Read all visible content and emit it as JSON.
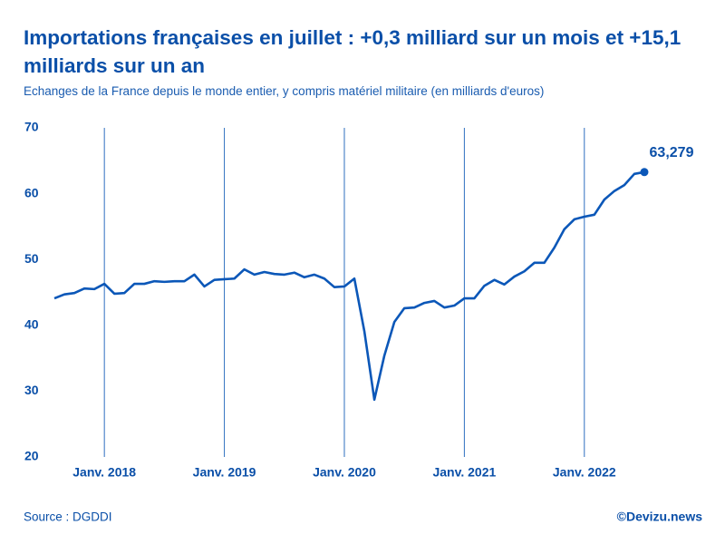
{
  "chart_data": {
    "type": "line",
    "title": "Importations françaises en juillet : +0,3 milliard sur un mois et +15,1 milliards sur un an",
    "subtitle": "Echanges de la France depuis le monde entier, y compris matériel militaire (en milliards d'euros)",
    "source": "Source : DGDDI",
    "credit": "©Devizu.news",
    "categories": [
      null,
      null,
      null,
      null,
      null,
      "Janv. 2018",
      null,
      null,
      null,
      null,
      null,
      null,
      null,
      null,
      null,
      null,
      null,
      "Janv. 2019",
      null,
      null,
      null,
      null,
      null,
      null,
      null,
      null,
      null,
      null,
      null,
      "Janv. 2020",
      null,
      null,
      null,
      null,
      null,
      null,
      null,
      null,
      null,
      null,
      null,
      "Janv. 2021",
      null,
      null,
      null,
      null,
      null,
      null,
      null,
      null,
      null,
      null,
      null,
      "Janv. 2022",
      null,
      null,
      null,
      null,
      null,
      null
    ],
    "values": [
      44.1,
      44.7,
      44.9,
      45.6,
      45.5,
      46.3,
      44.8,
      44.9,
      46.3,
      46.3,
      46.7,
      46.6,
      46.7,
      46.7,
      47.7,
      45.9,
      46.9,
      47.0,
      47.1,
      48.5,
      47.7,
      48.1,
      47.8,
      47.7,
      48.0,
      47.3,
      47.7,
      47.1,
      45.8,
      45.9,
      47.1,
      39.1,
      28.7,
      35.4,
      40.5,
      42.6,
      42.7,
      43.4,
      43.7,
      42.7,
      43.0,
      44.1,
      44.1,
      46.0,
      46.9,
      46.2,
      47.4,
      48.2,
      49.5,
      49.5,
      51.8,
      54.6,
      56.1,
      56.5,
      56.8,
      59.1,
      60.4,
      61.3,
      63.0,
      63.279
    ],
    "value_labels": [
      null,
      null,
      null,
      null,
      null,
      null,
      null,
      null,
      null,
      null,
      null,
      null,
      null,
      null,
      null,
      null,
      null,
      null,
      null,
      null,
      null,
      null,
      null,
      null,
      null,
      null,
      null,
      null,
      null,
      null,
      null,
      null,
      null,
      null,
      null,
      null,
      null,
      null,
      null,
      null,
      null,
      null,
      null,
      null,
      null,
      null,
      null,
      null,
      null,
      null,
      null,
      null,
      null,
      null,
      null,
      null,
      null,
      null,
      null,
      "63,279"
    ],
    "color": "#0b57b8",
    "ylim": [
      20,
      70
    ],
    "yticks": [
      20,
      30,
      40,
      50,
      60,
      70
    ],
    "x_grid": true
  }
}
